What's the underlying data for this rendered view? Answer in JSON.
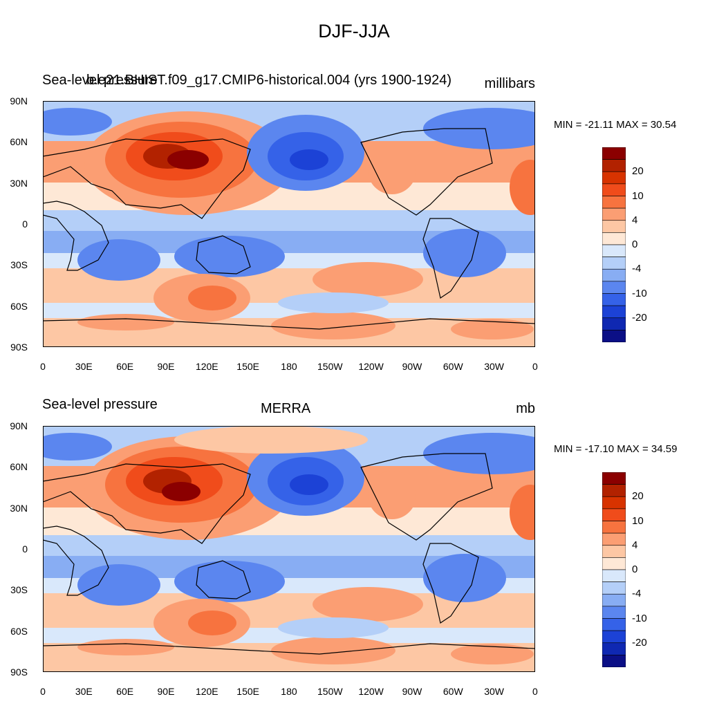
{
  "figure": {
    "title": "DJF-JJA"
  },
  "panels": [
    {
      "left_title": "Sea-level pressure",
      "center_title": "b.e21.BHIST.f09_g17.CMIP6-historical.004 (yrs 1900-1924)",
      "units": "millibars",
      "min_max": "MIN = -21.11 MAX =  30.54"
    },
    {
      "left_title": "Sea-level pressure",
      "center_title": "MERRA",
      "units": "mb",
      "min_max": "MIN = -17.10 MAX =  34.59"
    }
  ],
  "axes": {
    "lat_labels": [
      "90N",
      "60N",
      "30N",
      "0",
      "30S",
      "60S",
      "90S"
    ],
    "lon_labels": [
      "0",
      "30E",
      "60E",
      "90E",
      "120E",
      "150E",
      "180",
      "150W",
      "120W",
      "90W",
      "60W",
      "30W",
      "0"
    ]
  },
  "colorbar": {
    "labels": [
      "20",
      "10",
      "4",
      "0",
      "-4",
      "-10",
      "-20"
    ],
    "colors": [
      "#8b0000",
      "#b22200",
      "#d83300",
      "#f04c1b",
      "#f7733f",
      "#fb9e73",
      "#fdc7a4",
      "#fee8d6",
      "#d9e8fb",
      "#b4cff8",
      "#88adf3",
      "#5b86ef",
      "#3562e8",
      "#1c42d6",
      "#0f28b2",
      "#0b0f86"
    ]
  }
}
